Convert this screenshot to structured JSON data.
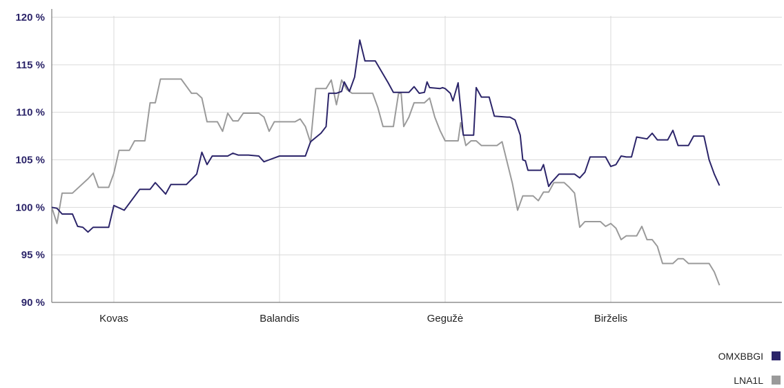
{
  "chart_data": {
    "type": "line",
    "title": "",
    "xlabel": "",
    "ylabel": "",
    "ylim": [
      90,
      120
    ],
    "yticks": [
      90,
      95,
      100,
      105,
      110,
      115,
      120
    ],
    "ytick_labels": [
      "90 %",
      "95 %",
      "100 %",
      "105 %",
      "110 %",
      "115 %",
      "120 %"
    ],
    "xlim": [
      0,
      140
    ],
    "month_ticks": [
      {
        "x": 12,
        "label": "Kovas"
      },
      {
        "x": 44,
        "label": "Balandis"
      },
      {
        "x": 76,
        "label": "Gegužė"
      },
      {
        "x": 108,
        "label": "Birželis"
      }
    ],
    "grid": true,
    "legend_position": "bottom-right",
    "series": [
      {
        "name": "OMXBBGI",
        "color": "#2b2469",
        "points": [
          [
            0,
            100
          ],
          [
            1,
            99.9
          ],
          [
            2,
            99.3
          ],
          [
            3,
            99.3
          ],
          [
            4,
            99.3
          ],
          [
            5,
            98
          ],
          [
            6,
            97.9
          ],
          [
            7,
            97.4
          ],
          [
            8,
            97.9
          ],
          [
            9,
            97.9
          ],
          [
            10,
            97.9
          ],
          [
            11,
            97.9
          ],
          [
            12,
            100.2
          ],
          [
            14,
            99.7
          ],
          [
            17,
            101.9
          ],
          [
            19,
            101.9
          ],
          [
            20,
            102.6
          ],
          [
            22,
            101.4
          ],
          [
            23,
            102.4
          ],
          [
            26,
            102.4
          ],
          [
            28,
            103.5
          ],
          [
            29,
            105.8
          ],
          [
            30,
            104.5
          ],
          [
            31,
            105.4
          ],
          [
            34,
            105.4
          ],
          [
            35,
            105.7
          ],
          [
            36,
            105.5
          ],
          [
            38,
            105.5
          ],
          [
            40,
            105.4
          ],
          [
            41,
            104.8
          ],
          [
            42,
            105
          ],
          [
            44,
            105.4
          ],
          [
            46,
            105.4
          ],
          [
            49,
            105.4
          ],
          [
            50,
            106.9
          ],
          [
            52,
            107.8
          ],
          [
            53,
            108.5
          ],
          [
            53.5,
            112
          ],
          [
            55,
            112
          ],
          [
            56,
            112.2
          ],
          [
            56.5,
            113.2
          ],
          [
            57.5,
            112.2
          ],
          [
            58.5,
            113.7
          ],
          [
            59.5,
            117.6
          ],
          [
            60.5,
            115.4
          ],
          [
            62,
            115.4
          ],
          [
            62.5,
            115.4
          ],
          [
            65,
            113.1
          ],
          [
            66,
            112.1
          ],
          [
            69,
            112.1
          ],
          [
            70,
            112.7
          ],
          [
            71,
            112
          ],
          [
            72,
            112.1
          ],
          [
            72.5,
            113.2
          ],
          [
            73,
            112.6
          ],
          [
            75,
            112.5
          ],
          [
            75.5,
            112.6
          ],
          [
            76,
            112.5
          ],
          [
            77,
            112
          ],
          [
            77.5,
            111.2
          ],
          [
            78.5,
            113.1
          ],
          [
            79.5,
            107.6
          ],
          [
            80,
            107.6
          ],
          [
            81.5,
            107.6
          ],
          [
            82,
            112.6
          ],
          [
            83,
            111.6
          ],
          [
            84.5,
            111.6
          ],
          [
            85.5,
            109.6
          ],
          [
            88,
            109.5
          ],
          [
            88.5,
            109.5
          ],
          [
            89.5,
            109.2
          ],
          [
            90.5,
            107.6
          ],
          [
            91,
            105
          ],
          [
            91.5,
            104.9
          ],
          [
            92,
            103.9
          ],
          [
            94.5,
            103.9
          ],
          [
            95,
            104.5
          ],
          [
            96,
            102.2
          ],
          [
            96.5,
            102.6
          ],
          [
            97,
            102.9
          ],
          [
            98,
            103.5
          ],
          [
            101,
            103.5
          ],
          [
            102,
            103.1
          ],
          [
            103,
            103.7
          ],
          [
            104,
            105.3
          ],
          [
            107,
            105.3
          ],
          [
            108,
            104.3
          ],
          [
            109,
            104.5
          ],
          [
            110,
            105.4
          ],
          [
            111,
            105.3
          ],
          [
            112,
            105.3
          ],
          [
            113,
            107.4
          ],
          [
            115,
            107.2
          ],
          [
            116,
            107.8
          ],
          [
            117,
            107.1
          ],
          [
            119,
            107.1
          ],
          [
            120,
            108.1
          ],
          [
            121,
            106.5
          ],
          [
            123,
            106.5
          ],
          [
            124,
            107.5
          ],
          [
            126,
            107.5
          ],
          [
            127,
            105
          ],
          [
            128,
            103.5
          ],
          [
            129,
            102.3
          ]
        ]
      },
      {
        "name": "LNA1L",
        "color": "#9a9a9a",
        "points": [
          [
            0,
            100
          ],
          [
            1,
            98.3
          ],
          [
            2,
            101.5
          ],
          [
            4,
            101.5
          ],
          [
            5,
            102
          ],
          [
            7,
            103
          ],
          [
            8,
            103.6
          ],
          [
            9,
            102.1
          ],
          [
            10,
            102.1
          ],
          [
            11,
            102.1
          ],
          [
            12,
            103.6
          ],
          [
            13,
            106
          ],
          [
            15,
            106
          ],
          [
            16,
            107
          ],
          [
            17,
            107
          ],
          [
            18,
            107
          ],
          [
            19,
            111
          ],
          [
            20,
            111
          ],
          [
            21,
            113.5
          ],
          [
            25,
            113.5
          ],
          [
            27,
            112
          ],
          [
            28,
            112
          ],
          [
            29,
            111.5
          ],
          [
            30,
            109
          ],
          [
            32,
            109
          ],
          [
            33,
            108
          ],
          [
            34,
            109.9
          ],
          [
            35,
            109.1
          ],
          [
            36,
            109.1
          ],
          [
            37,
            109.9
          ],
          [
            40,
            109.9
          ],
          [
            41,
            109.5
          ],
          [
            42,
            108
          ],
          [
            43,
            109
          ],
          [
            47,
            109
          ],
          [
            48,
            109.3
          ],
          [
            49,
            108.5
          ],
          [
            50,
            106.8
          ],
          [
            51,
            112.5
          ],
          [
            53,
            112.5
          ],
          [
            54,
            113.4
          ],
          [
            55,
            110.8
          ],
          [
            56,
            113.4
          ],
          [
            57,
            112.4
          ],
          [
            58,
            112
          ],
          [
            62,
            112
          ],
          [
            63,
            110.5
          ],
          [
            64,
            108.5
          ],
          [
            66,
            108.5
          ],
          [
            67,
            112
          ],
          [
            67.5,
            112
          ],
          [
            68,
            108.5
          ],
          [
            69,
            109.5
          ],
          [
            70,
            111
          ],
          [
            72,
            111
          ],
          [
            73,
            111.5
          ],
          [
            74,
            109.5
          ],
          [
            75,
            108.1
          ],
          [
            76,
            107
          ],
          [
            78,
            107
          ],
          [
            78.5,
            107
          ],
          [
            79,
            108.9
          ],
          [
            80,
            106.5
          ],
          [
            81,
            107
          ],
          [
            82,
            107
          ],
          [
            83,
            106.5
          ],
          [
            86,
            106.5
          ],
          [
            87,
            106.9
          ],
          [
            89,
            102.5
          ],
          [
            90,
            99.7
          ],
          [
            91,
            101.2
          ],
          [
            93,
            101.2
          ],
          [
            94,
            100.7
          ],
          [
            95,
            101.6
          ],
          [
            96,
            101.6
          ],
          [
            97,
            102.6
          ],
          [
            98,
            102.6
          ],
          [
            99,
            102.6
          ],
          [
            100,
            102.1
          ],
          [
            101,
            101.5
          ],
          [
            102,
            97.9
          ],
          [
            103,
            98.5
          ],
          [
            106,
            98.5
          ],
          [
            107,
            98
          ],
          [
            108,
            98.3
          ],
          [
            109,
            97.8
          ],
          [
            110,
            96.6
          ],
          [
            111,
            97
          ],
          [
            113,
            97
          ],
          [
            114,
            98
          ],
          [
            115,
            96.6
          ],
          [
            116,
            96.6
          ],
          [
            117,
            95.9
          ],
          [
            118,
            94.1
          ],
          [
            120,
            94.1
          ],
          [
            121,
            94.6
          ],
          [
            122,
            94.6
          ],
          [
            123,
            94.1
          ],
          [
            127,
            94.1
          ],
          [
            128,
            93.2
          ],
          [
            129,
            91.8
          ]
        ]
      }
    ]
  }
}
